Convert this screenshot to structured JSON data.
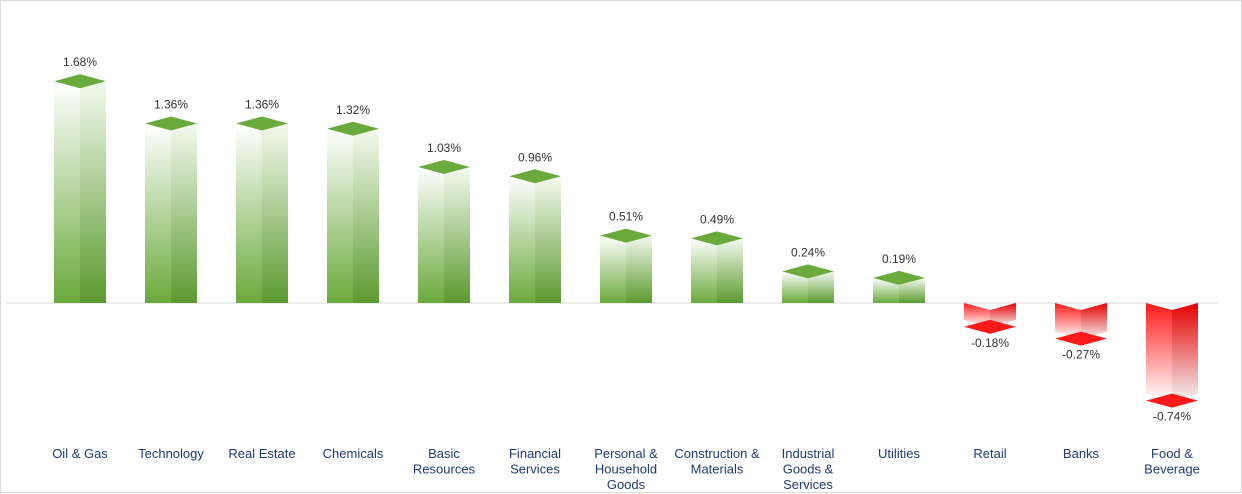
{
  "chart_data": {
    "type": "bar",
    "title": "",
    "xlabel": "",
    "ylabel": "",
    "ylim": [
      -0.8,
      1.8
    ],
    "grid": false,
    "legend": "none",
    "categories": [
      [
        "Oil & Gas"
      ],
      [
        "Technology"
      ],
      [
        "Real Estate"
      ],
      [
        "Chemicals"
      ],
      [
        "Basic",
        "Resources"
      ],
      [
        "Financial",
        "Services"
      ],
      [
        "Personal &",
        "Household",
        "Goods"
      ],
      [
        "Construction &",
        "Materials"
      ],
      [
        "Industrial",
        "Goods &",
        "Services"
      ],
      [
        "Utilities"
      ],
      [
        "Retail"
      ],
      [
        "Banks"
      ],
      [
        "Food &",
        "Beverage"
      ]
    ],
    "values": [
      1.68,
      1.36,
      1.36,
      1.32,
      1.03,
      0.96,
      0.51,
      0.49,
      0.24,
      0.19,
      -0.18,
      -0.27,
      -0.74
    ],
    "value_labels": [
      "1.68%",
      "1.36%",
      "1.36%",
      "1.32%",
      "1.03%",
      "0.96%",
      "0.51%",
      "0.49%",
      "0.24%",
      "0.19%",
      "-0.18%",
      "-0.27%",
      "-0.74%"
    ],
    "colors": {
      "positive": "#6aaa3c",
      "positive_light": "#ffffff",
      "negative": "#ff1a1a",
      "negative_light": "#ffffff",
      "axis": "#d9d9d9",
      "category_text": "#1f3a7a",
      "value_text": "#333333"
    }
  }
}
